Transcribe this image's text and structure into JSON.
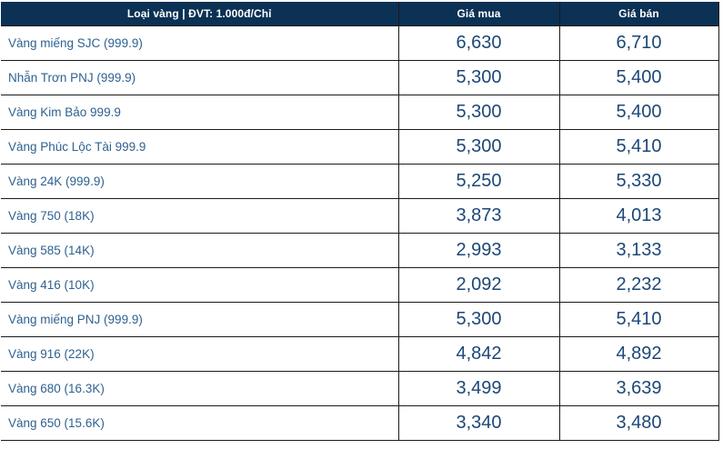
{
  "table": {
    "header": {
      "type_label": "Loại vàng | ĐVT: 1.000đ/Chỉ",
      "buy_label": "Giá mua",
      "sell_label": "Giá bán"
    },
    "rows": [
      {
        "label": "Vàng miếng SJC (999.9)",
        "buy": "6,630",
        "sell": "6,710"
      },
      {
        "label": "Nhẫn Trơn PNJ (999.9)",
        "buy": "5,300",
        "sell": "5,400"
      },
      {
        "label": "Vàng Kim Bảo 999.9",
        "buy": "5,300",
        "sell": "5,400"
      },
      {
        "label": "Vàng Phúc Lộc Tài 999.9",
        "buy": "5,300",
        "sell": "5,410"
      },
      {
        "label": "Vàng 24K (999.9)",
        "buy": "5,250",
        "sell": "5,330"
      },
      {
        "label": "Vàng 750 (18K)",
        "buy": "3,873",
        "sell": "4,013"
      },
      {
        "label": "Vàng 585 (14K)",
        "buy": "2,993",
        "sell": "3,133"
      },
      {
        "label": "Vàng 416 (10K)",
        "buy": "2,092",
        "sell": "2,232"
      },
      {
        "label": "Vàng miếng PNJ (999.9)",
        "buy": "5,300",
        "sell": "5,410"
      },
      {
        "label": "Vàng 916 (22K)",
        "buy": "4,842",
        "sell": "4,892"
      },
      {
        "label": "Vàng 680 (16.3K)",
        "buy": "3,499",
        "sell": "3,639"
      },
      {
        "label": "Vàng 650 (15.6K)",
        "buy": "3,340",
        "sell": "3,480"
      }
    ],
    "colors": {
      "header_bg": "#0b3155",
      "header_text": "#ffffff",
      "label_text": "#2e6191",
      "price_text": "#1c4777",
      "border": "#1a1a1a"
    }
  }
}
